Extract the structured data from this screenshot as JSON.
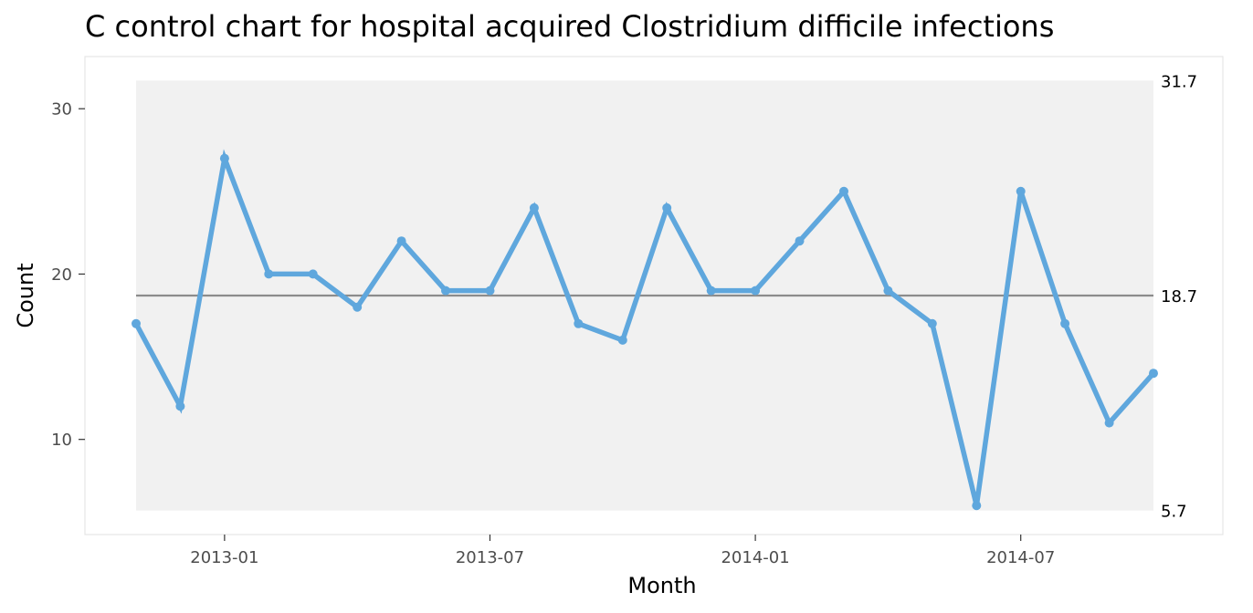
{
  "chart_data": {
    "type": "line",
    "title": "C control chart for hospital acquired Clostridium difficile infections",
    "xlabel": "Month",
    "ylabel": "Count",
    "x": [
      "2012-11",
      "2012-12",
      "2013-01",
      "2013-02",
      "2013-03",
      "2013-04",
      "2013-05",
      "2013-06",
      "2013-07",
      "2013-08",
      "2013-09",
      "2013-10",
      "2013-11",
      "2013-12",
      "2014-01",
      "2014-02",
      "2014-03",
      "2014-04",
      "2014-05",
      "2014-06",
      "2014-07",
      "2014-08",
      "2014-09",
      "2014-10"
    ],
    "values": [
      17,
      12,
      27,
      20,
      20,
      18,
      22,
      19,
      19,
      24,
      17,
      16,
      24,
      19,
      19,
      22,
      25,
      19,
      17,
      6,
      25,
      17,
      11,
      14
    ],
    "x_ticks": [
      "2013-01",
      "2013-07",
      "2014-01",
      "2014-07"
    ],
    "y_ticks": [
      10,
      20,
      30
    ],
    "ylim": [
      4.3,
      33.1
    ],
    "center_line": 18.7,
    "upper_limit": 31.7,
    "lower_limit": 5.7,
    "limit_labels": [
      "31.7",
      "18.7",
      "5.7"
    ],
    "grid": false,
    "colors": {
      "series": "#5fa7dd",
      "center_line": "#8c8c8c",
      "limits_band": "#f1f1f1",
      "panel_border": "#e6e6e6"
    }
  }
}
